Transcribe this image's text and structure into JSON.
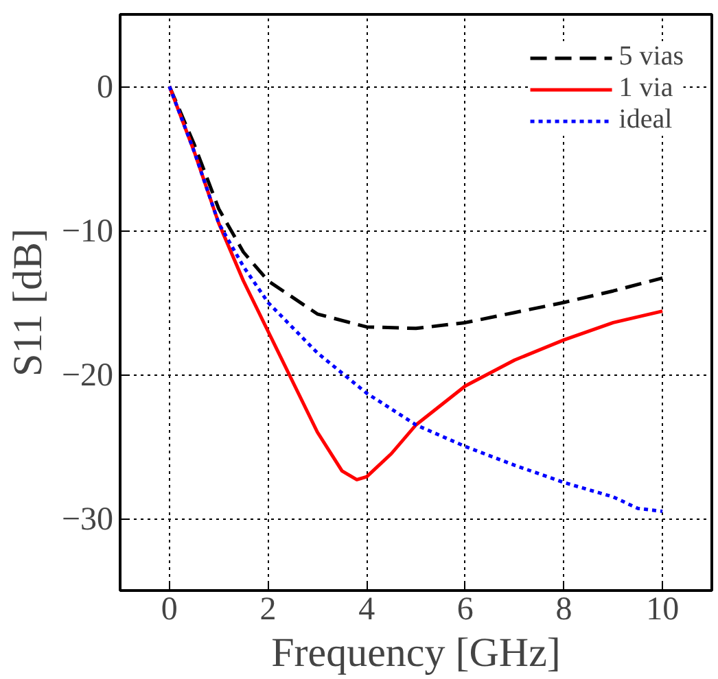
{
  "chart_data": {
    "type": "line",
    "xlabel": "Frequency [GHz]",
    "ylabel": "S11 [dB]",
    "xlim": [
      -1,
      11
    ],
    "ylim": [
      -35,
      5
    ],
    "xticks": [
      0,
      2,
      4,
      6,
      8,
      10
    ],
    "yticks": [
      0,
      -10,
      -20,
      -30
    ],
    "grid": true,
    "legend": "top right",
    "series": [
      {
        "name": "5 vias",
        "color": "#000000",
        "line_style": "dashed",
        "x": [
          0,
          0.5,
          1,
          1.5,
          2,
          3,
          4,
          5,
          6,
          7,
          8,
          9,
          10
        ],
        "values": [
          0,
          -4,
          -8.5,
          -11.5,
          -13.5,
          -15.8,
          -16.7,
          -16.8,
          -16.4,
          -15.7,
          -15,
          -14.2,
          -13.3
        ]
      },
      {
        "name": "1 via",
        "color": "#ff0000",
        "line_style": "solid",
        "x": [
          0,
          0.5,
          1,
          1.5,
          2,
          2.5,
          3,
          3.5,
          3.8,
          4,
          4.5,
          5,
          6,
          7,
          8,
          9,
          10
        ],
        "values": [
          0,
          -4.5,
          -9.5,
          -13.5,
          -17,
          -20.5,
          -24,
          -26.7,
          -27.3,
          -27.1,
          -25.5,
          -23.5,
          -20.8,
          -19,
          -17.6,
          -16.4,
          -15.6
        ]
      },
      {
        "name": "ideal",
        "color": "#0000ff",
        "line_style": "dotted",
        "x": [
          0,
          0.5,
          1,
          1.5,
          2,
          3,
          4,
          5,
          6,
          7,
          8,
          9,
          9.5,
          10
        ],
        "values": [
          0,
          -4.5,
          -9.5,
          -12.5,
          -15,
          -18.5,
          -21.3,
          -23.5,
          -25,
          -26.3,
          -27.5,
          -28.5,
          -29.3,
          -29.5
        ]
      }
    ]
  }
}
